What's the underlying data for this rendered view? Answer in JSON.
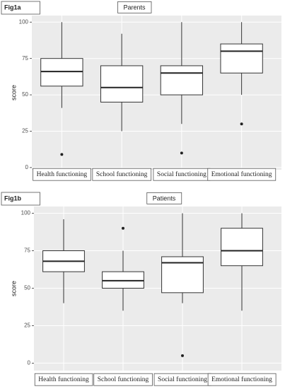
{
  "chart_data": [
    {
      "type": "box",
      "figure_label": "Fig1a",
      "title": "Parents",
      "ylabel": "score",
      "categories": [
        "Health functioning",
        "School functioning",
        "Social functioning",
        "Emotional functioning"
      ],
      "boxes": [
        {
          "whislo": 41,
          "q1": 56,
          "med": 66,
          "q3": 75,
          "whishi": 100,
          "fliers": [
            9
          ]
        },
        {
          "whislo": 25,
          "q1": 45,
          "med": 55,
          "q3": 70,
          "whishi": 92,
          "fliers": []
        },
        {
          "whislo": 30,
          "q1": 50,
          "med": 65,
          "q3": 70,
          "whishi": 100,
          "fliers": [
            10
          ]
        },
        {
          "whislo": 50,
          "q1": 65,
          "med": 80,
          "q3": 85,
          "whishi": 100,
          "fliers": [
            30
          ]
        }
      ],
      "ylim": [
        -1.5,
        104.5
      ],
      "yticks": [
        0,
        25,
        50,
        75,
        100
      ],
      "grid": true
    },
    {
      "type": "box",
      "figure_label": "Fig1b",
      "title": "Patients",
      "ylabel": "score",
      "categories": [
        "Health functioning",
        "School functioning",
        "Social functioning",
        "Emotional functioning"
      ],
      "boxes": [
        {
          "whislo": 40,
          "q1": 61,
          "med": 68,
          "q3": 75,
          "whishi": 96,
          "fliers": []
        },
        {
          "whislo": 35,
          "q1": 50,
          "med": 55,
          "q3": 61,
          "whishi": 75,
          "fliers": [
            90
          ]
        },
        {
          "whislo": 40,
          "q1": 47,
          "med": 67,
          "q3": 71,
          "whishi": 100,
          "fliers": [
            5
          ]
        },
        {
          "whislo": 35,
          "q1": 65,
          "med": 75,
          "q3": 90,
          "whishi": 100,
          "fliers": []
        }
      ],
      "ylim": [
        -5,
        104.5
      ],
      "yticks": [
        0,
        25,
        50,
        75,
        100
      ],
      "grid": true
    }
  ]
}
